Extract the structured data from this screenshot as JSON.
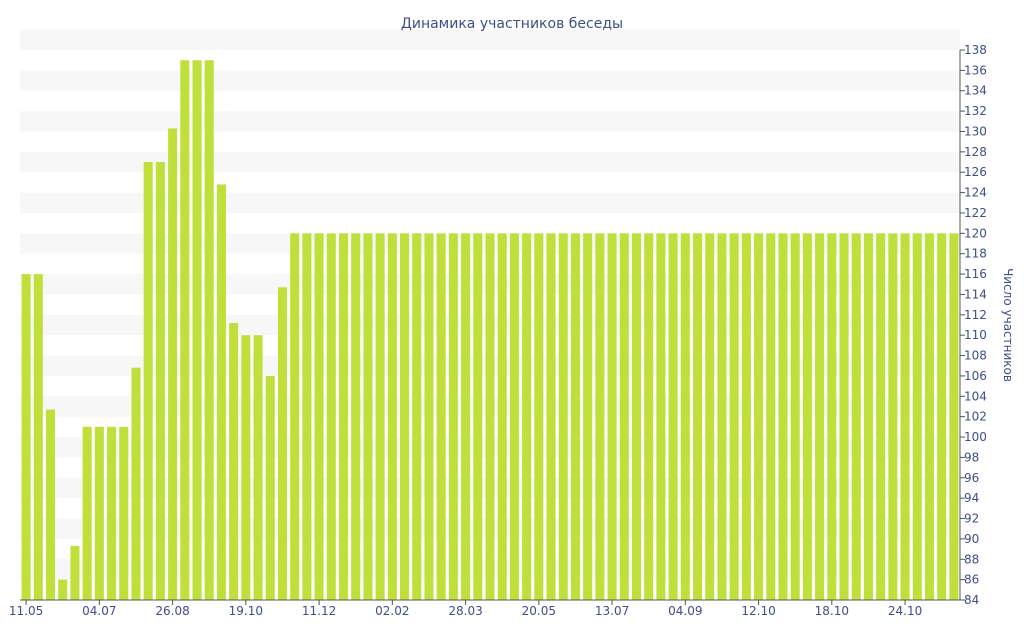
{
  "chart_data": {
    "type": "bar",
    "title": "Динамика участников беседы",
    "xlabel": "",
    "ylabel": "Число участников",
    "ylim": [
      84,
      138
    ],
    "ytick_step": 2,
    "grid": "horizontal-bands",
    "bar_color": "#bfe03a",
    "band_color": "#f7f7f7",
    "text_color": "#3b4f8a",
    "x_tick_labels": [
      {
        "index": 0,
        "label": "11.05"
      },
      {
        "index": 6,
        "label": "04.07"
      },
      {
        "index": 12,
        "label": "26.08"
      },
      {
        "index": 18,
        "label": "19.10"
      },
      {
        "index": 24,
        "label": "11.12"
      },
      {
        "index": 30,
        "label": "02.02"
      },
      {
        "index": 36,
        "label": "28.03"
      },
      {
        "index": 42,
        "label": "20.05"
      },
      {
        "index": 48,
        "label": "13.07"
      },
      {
        "index": 54,
        "label": "04.09"
      },
      {
        "index": 60,
        "label": "12.10"
      },
      {
        "index": 66,
        "label": "18.10"
      },
      {
        "index": 72,
        "label": "24.10"
      }
    ],
    "values": [
      116,
      116,
      102.7,
      86,
      89.3,
      101,
      101,
      101,
      101,
      106.8,
      127,
      127,
      130.3,
      137,
      137,
      137,
      124.8,
      111.2,
      110,
      110,
      106,
      114.7,
      120,
      120,
      120,
      120,
      120,
      120,
      120,
      120,
      120,
      120,
      120,
      120,
      120,
      120,
      120,
      120,
      120,
      120,
      120,
      120,
      120,
      120,
      120,
      120,
      120,
      120,
      120,
      120,
      120,
      120,
      120,
      120,
      120,
      120,
      120,
      120,
      120,
      120,
      120,
      120,
      120,
      120,
      120,
      120,
      120,
      120,
      120,
      120,
      120,
      120,
      120,
      120,
      120,
      120,
      120
    ]
  }
}
